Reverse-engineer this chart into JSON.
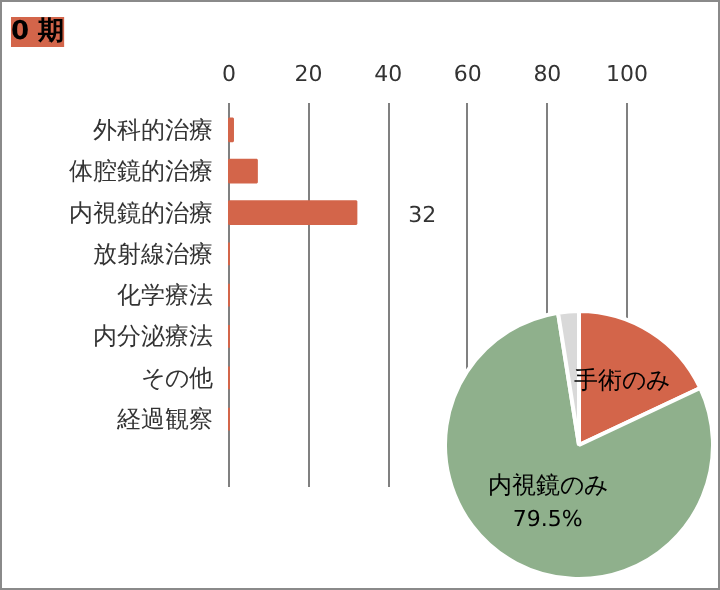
{
  "chart_data": [
    {
      "type": "bar",
      "title": "0 期",
      "orientation": "horizontal",
      "categories": [
        "外科的治療",
        "体腔鏡的治療",
        "内視鏡的治療",
        "放射線治療",
        "化学療法",
        "内分泌療法",
        "その他",
        "経過観察"
      ],
      "values": [
        1,
        7,
        32,
        0,
        0,
        0,
        0,
        0
      ],
      "value_labels": [
        null,
        null,
        "32",
        null,
        null,
        null,
        null,
        null
      ],
      "color": "#d3654a",
      "xlim": [
        0,
        100
      ],
      "xticks": [
        0,
        20,
        40,
        60,
        80,
        100
      ],
      "grid": "x"
    },
    {
      "type": "pie",
      "categories": [
        "手術のみ",
        "内視鏡のみ",
        null
      ],
      "values": [
        18,
        79.5,
        2.5
      ],
      "colors": [
        "#d3654a",
        "#8fb08c",
        "#d9d9d9"
      ],
      "value_labels": [
        null,
        "79.5%",
        null
      ]
    }
  ]
}
